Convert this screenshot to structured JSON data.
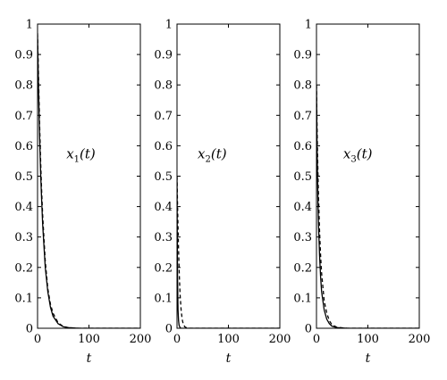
{
  "chart_data": [
    {
      "type": "line",
      "label_base": "x",
      "label_sub": "1",
      "label_arg": "(t)",
      "xlabel": "t",
      "xlim": [
        0,
        200
      ],
      "ylim": [
        0,
        1
      ],
      "xticks": [
        "0",
        "100",
        "200"
      ],
      "yticks": [
        "0",
        "0.1",
        "0.2",
        "0.3",
        "0.4",
        "0.5",
        "0.6",
        "0.7",
        "0.8",
        "0.9",
        "1"
      ],
      "series": [
        {
          "style": "solid",
          "x": [
            0,
            2,
            4,
            6,
            8,
            10,
            15,
            20,
            25,
            30,
            40,
            50,
            60,
            80,
            100,
            150,
            200
          ],
          "y": [
            0.96,
            0.78,
            0.63,
            0.51,
            0.42,
            0.34,
            0.2,
            0.12,
            0.07,
            0.04,
            0.015,
            0.005,
            0.002,
            0.0,
            0.0,
            0.0,
            0.0
          ]
        },
        {
          "style": "dashed",
          "x": [
            0,
            2,
            4,
            6,
            8,
            10,
            15,
            20,
            25,
            30,
            40,
            50,
            60,
            80,
            100,
            150,
            200
          ],
          "y": [
            0.97,
            0.82,
            0.67,
            0.55,
            0.45,
            0.37,
            0.22,
            0.13,
            0.08,
            0.05,
            0.018,
            0.006,
            0.002,
            0.0,
            0.0,
            0.0,
            0.0
          ]
        }
      ]
    },
    {
      "type": "line",
      "label_base": "x",
      "label_sub": "2",
      "label_arg": "(t)",
      "xlabel": "t",
      "xlim": [
        0,
        200
      ],
      "ylim": [
        0,
        1
      ],
      "xticks": [
        "0",
        "100",
        "200"
      ],
      "yticks": [
        "0",
        "0.1",
        "0.2",
        "0.3",
        "0.4",
        "0.5",
        "0.6",
        "0.7",
        "0.8",
        "0.9",
        "1"
      ],
      "series": [
        {
          "style": "solid",
          "x": [
            0,
            0.5,
            1,
            1.5,
            2,
            3,
            4,
            6,
            8,
            10,
            20,
            200
          ],
          "y": [
            0.5,
            0.3,
            0.18,
            0.11,
            0.06,
            0.025,
            0.01,
            0.002,
            0.0,
            0.0,
            0.0,
            0.0
          ]
        },
        {
          "style": "dashed",
          "x": [
            0,
            1,
            2,
            3,
            4,
            5,
            6,
            8,
            10,
            12,
            15,
            20,
            200
          ],
          "y": [
            0.5,
            0.41,
            0.33,
            0.26,
            0.2,
            0.15,
            0.11,
            0.06,
            0.03,
            0.015,
            0.005,
            0.0,
            0.0
          ]
        }
      ]
    },
    {
      "type": "line",
      "label_base": "x",
      "label_sub": "3",
      "label_arg": "(t)",
      "xlabel": "t",
      "xlim": [
        0,
        200
      ],
      "ylim": [
        0,
        1
      ],
      "xticks": [
        "0",
        "100",
        "200"
      ],
      "yticks": [
        "0",
        "0.1",
        "0.2",
        "0.3",
        "0.4",
        "0.5",
        "0.6",
        "0.7",
        "0.8",
        "0.9",
        "1"
      ],
      "series": [
        {
          "style": "solid",
          "x": [
            0,
            1,
            2,
            3,
            4,
            6,
            8,
            10,
            15,
            20,
            25,
            30,
            40,
            60,
            200
          ],
          "y": [
            0.8,
            0.62,
            0.5,
            0.41,
            0.34,
            0.24,
            0.17,
            0.12,
            0.06,
            0.03,
            0.015,
            0.007,
            0.002,
            0.0,
            0.0
          ]
        },
        {
          "style": "dashed",
          "x": [
            0,
            1,
            2,
            3,
            4,
            6,
            8,
            10,
            15,
            20,
            25,
            30,
            40,
            60,
            200
          ],
          "y": [
            0.8,
            0.68,
            0.58,
            0.5,
            0.43,
            0.32,
            0.24,
            0.18,
            0.09,
            0.05,
            0.025,
            0.012,
            0.003,
            0.0,
            0.0
          ]
        }
      ]
    }
  ]
}
